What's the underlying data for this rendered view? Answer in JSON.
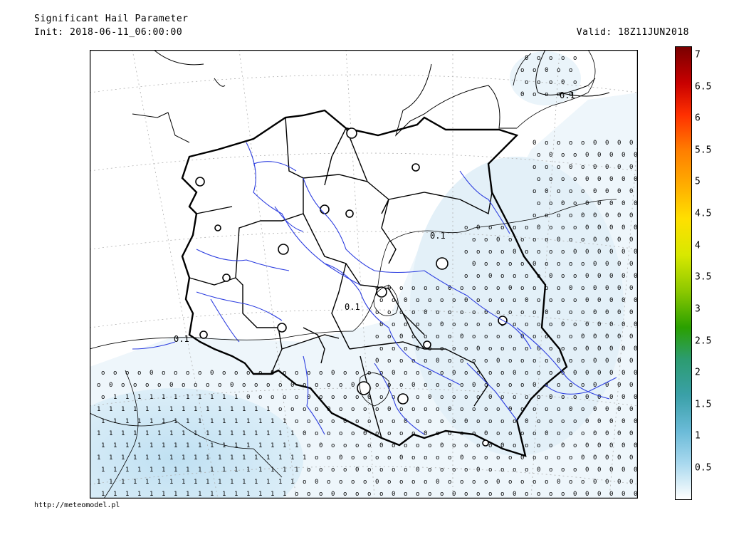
{
  "header": {
    "title": "Significant Hail Parameter",
    "init": "Init: 2018-06-11_06:00:00",
    "valid": "Valid: 18Z11JUN2018"
  },
  "footer": {
    "credit": "http://meteomodel.pl"
  },
  "map": {
    "contour_label": "0.1",
    "symbols": {
      "low": "o",
      "mid": "0",
      "high": "1"
    }
  },
  "legend": {
    "ticks": [
      "7",
      "6.5",
      "6",
      "5.5",
      "5",
      "4.5",
      "4",
      "3.5",
      "3",
      "2.5",
      "2",
      "1.5",
      "1",
      "0.5"
    ],
    "colors_top_to_bottom": [
      "#7a0000",
      "#c80000",
      "#ff3000",
      "#ff7f00",
      "#ffb000",
      "#ffe000",
      "#d8e800",
      "#8cc800",
      "#2aa000",
      "#2c9c70",
      "#3aa0a8",
      "#6bbbd8",
      "#a8d8ee",
      "#ffffff"
    ],
    "field_tints": {
      "low": "#eef6fb",
      "high": "#cfe8f5"
    }
  }
}
